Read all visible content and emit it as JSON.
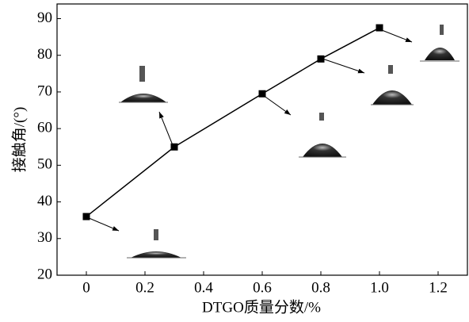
{
  "chart_data": {
    "type": "line",
    "xlabel": "DTGO质量分数/%",
    "ylabel": "接触角/(°)",
    "x": [
      0,
      0.3,
      0.6,
      0.8,
      1.0
    ],
    "series": [
      {
        "color": "#000000",
        "values": [
          36,
          55,
          69.5,
          79,
          87.5
        ]
      }
    ],
    "xlim": [
      -0.1,
      1.3
    ],
    "ylim": [
      20,
      94
    ],
    "xticks": [
      0,
      0.2,
      0.4,
      0.6,
      0.8,
      {
        "value": 1,
        "label": "1.0"
      },
      1.2
    ],
    "yticks": [
      20,
      30,
      40,
      50,
      60,
      70,
      80,
      90
    ]
  }
}
